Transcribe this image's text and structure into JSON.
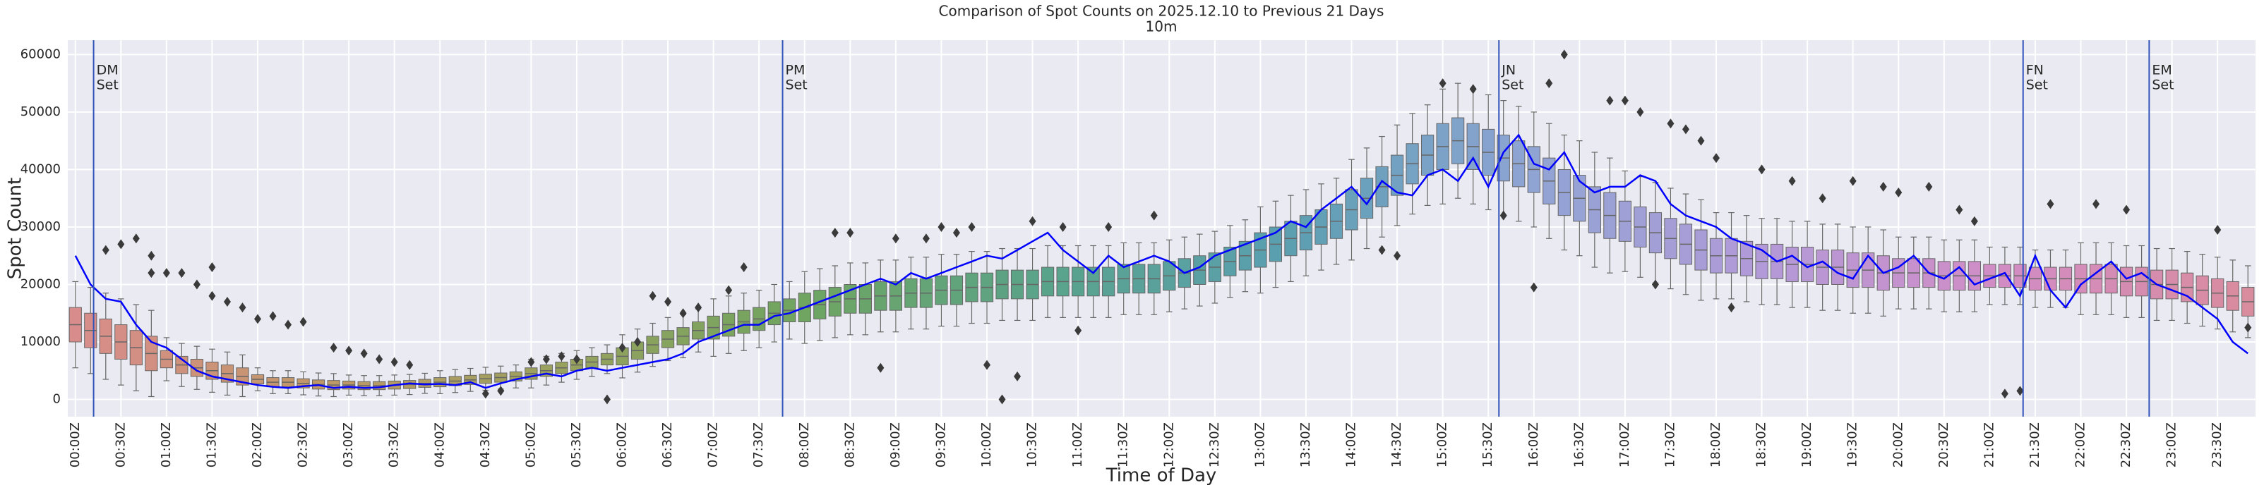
{
  "chart_data": {
    "type": "box",
    "title": "Comparison of Spot Counts on 2025.12.10 to Previous 21 Days",
    "subtitle": "10m",
    "xlabel": "Time of Day",
    "ylabel": "Spot Count",
    "categories": [
      "00:00Z",
      null,
      null,
      "00:30Z",
      null,
      null,
      "01:00Z",
      null,
      null,
      "01:30Z",
      null,
      null,
      "02:00Z",
      null,
      null,
      "02:30Z",
      null,
      null,
      "03:00Z",
      null,
      null,
      "03:30Z",
      null,
      null,
      "04:00Z",
      null,
      null,
      "04:30Z",
      null,
      null,
      "05:00Z",
      null,
      null,
      "05:30Z",
      null,
      null,
      "06:00Z",
      null,
      null,
      "06:30Z",
      null,
      null,
      "07:00Z",
      null,
      null,
      "07:30Z",
      null,
      null,
      "08:00Z",
      null,
      null,
      "08:30Z",
      null,
      null,
      "09:00Z",
      null,
      null,
      "09:30Z",
      null,
      null,
      "10:00Z",
      null,
      null,
      "10:30Z",
      null,
      null,
      "11:00Z",
      null,
      null,
      "11:30Z",
      null,
      null,
      "12:00Z",
      null,
      null,
      "12:30Z",
      null,
      null,
      "13:00Z",
      null,
      null,
      "13:30Z",
      null,
      null,
      "14:00Z",
      null,
      null,
      "14:30Z",
      null,
      null,
      "15:00Z",
      null,
      null,
      "15:30Z",
      null,
      null,
      "16:00Z",
      null,
      null,
      "16:30Z",
      null,
      null,
      "17:00Z",
      null,
      null,
      "17:30Z",
      null,
      null,
      "18:00Z",
      null,
      null,
      "18:30Z",
      null,
      null,
      "19:00Z",
      null,
      null,
      "19:30Z",
      null,
      null,
      "20:00Z",
      null,
      null,
      "20:30Z",
      null,
      null,
      "21:00Z",
      null,
      null,
      "21:30Z",
      null,
      null,
      "22:00Z",
      null,
      null,
      "22:30Z",
      null,
      null,
      "23:00Z",
      null,
      null,
      "23:30Z",
      null,
      null
    ],
    "median": [
      13000,
      12000,
      11000,
      10000,
      9000,
      8000,
      7000,
      6000,
      5500,
      5000,
      4500,
      4000,
      3500,
      3000,
      3000,
      2800,
      2600,
      2500,
      2500,
      2400,
      2400,
      2500,
      2600,
      2800,
      3000,
      3200,
      3400,
      3600,
      3800,
      4000,
      4500,
      5000,
      5500,
      6000,
      6500,
      7000,
      7500,
      8500,
      9500,
      10500,
      11000,
      12000,
      12500,
      13000,
      13500,
      14000,
      15000,
      15500,
      16000,
      16500,
      17000,
      17500,
      17500,
      18000,
      18000,
      18500,
      18500,
      19000,
      19000,
      19500,
      19500,
      20000,
      20000,
      20000,
      20500,
      20500,
      20500,
      20500,
      20500,
      21000,
      21000,
      21000,
      21500,
      22000,
      22500,
      23000,
      24000,
      25000,
      26000,
      27000,
      28000,
      29000,
      30000,
      31000,
      33000,
      35000,
      37000,
      39000,
      41000,
      42500,
      44000,
      45000,
      44000,
      43000,
      42000,
      41000,
      40000,
      38000,
      36000,
      35000,
      33000,
      32000,
      31000,
      30000,
      29000,
      28000,
      27000,
      26000,
      25000,
      25000,
      24500,
      24000,
      24000,
      23500,
      23500,
      23000,
      23000,
      22500,
      22500,
      22000,
      22000,
      22000,
      22000,
      21500,
      21500,
      21500,
      21500,
      21500,
      21500,
      21000,
      21000,
      21000,
      21000,
      21000,
      21000,
      20500,
      20500,
      20000,
      20000,
      19500,
      19000,
      18500,
      18000,
      17000
    ],
    "q1": [
      10000,
      9000,
      8000,
      7000,
      6000,
      5000,
      5500,
      4500,
      4000,
      3500,
      3000,
      2500,
      2700,
      2200,
      2200,
      2000,
      1800,
      1700,
      1800,
      1700,
      1700,
      1800,
      1900,
      2100,
      2200,
      2400,
      2600,
      2800,
      3000,
      3200,
      3500,
      4000,
      4500,
      5000,
      5500,
      6000,
      6000,
      7000,
      8000,
      9000,
      9500,
      10500,
      10500,
      11000,
      11500,
      12000,
      13000,
      13500,
      13500,
      14000,
      14500,
      15000,
      15000,
      15500,
      15500,
      16000,
      16000,
      16500,
      16500,
      17000,
      17000,
      17500,
      17500,
      17500,
      18000,
      18000,
      18000,
      18000,
      18000,
      18500,
      18500,
      18500,
      19000,
      19500,
      20000,
      20500,
      21500,
      22500,
      23000,
      24000,
      25000,
      26000,
      27000,
      28000,
      29500,
      31500,
      33500,
      35500,
      37500,
      39000,
      40000,
      41000,
      40000,
      39000,
      38000,
      37000,
      36000,
      34000,
      32000,
      31000,
      29000,
      28000,
      27500,
      26500,
      25500,
      24500,
      23500,
      22500,
      22000,
      22000,
      21500,
      21000,
      21000,
      20500,
      20500,
      20000,
      20000,
      19500,
      19500,
      19000,
      19500,
      19500,
      19500,
      19000,
      19000,
      19000,
      19500,
      19500,
      19500,
      19000,
      19000,
      19000,
      18500,
      18500,
      18500,
      18000,
      18000,
      17500,
      17500,
      17000,
      16500,
      16000,
      15500,
      14500
    ],
    "q3": [
      16000,
      15000,
      14000,
      13000,
      12000,
      11000,
      8500,
      7500,
      7000,
      6500,
      6000,
      5500,
      4300,
      3800,
      3800,
      3600,
      3400,
      3300,
      3200,
      3100,
      3100,
      3200,
      3300,
      3500,
      3800,
      4000,
      4200,
      4400,
      4600,
      4800,
      5500,
      6000,
      6500,
      7000,
      7500,
      8000,
      9000,
      10000,
      11000,
      12000,
      12500,
      13500,
      14500,
      15000,
      15500,
      16000,
      17000,
      17500,
      18500,
      19000,
      19500,
      20000,
      20000,
      20500,
      20500,
      21000,
      21000,
      21500,
      21500,
      22000,
      22000,
      22500,
      22500,
      22500,
      23000,
      23000,
      23000,
      23000,
      23000,
      23500,
      23500,
      23500,
      24000,
      24500,
      25000,
      25500,
      26500,
      27500,
      29000,
      30000,
      31000,
      32000,
      33000,
      34000,
      36500,
      38500,
      40500,
      42500,
      44500,
      46000,
      48000,
      49000,
      48000,
      47000,
      46000,
      45000,
      44000,
      42000,
      40000,
      39000,
      37000,
      36000,
      34500,
      33500,
      32500,
      31500,
      30500,
      29500,
      28000,
      28000,
      27500,
      27000,
      27000,
      26500,
      26500,
      26000,
      26000,
      25500,
      25500,
      25000,
      24500,
      24500,
      24500,
      24000,
      24000,
      24000,
      23500,
      23500,
      23500,
      23000,
      23000,
      23000,
      23500,
      23500,
      23500,
      23000,
      23000,
      22500,
      22500,
      22000,
      21500,
      21000,
      20500,
      19500
    ],
    "whislo": [
      5500,
      4500,
      3500,
      2500,
      1500,
      500,
      3250,
      2250,
      1750,
      1250,
      750,
      500,
      1500,
      1000,
      1000,
      800,
      600,
      500,
      750,
      650,
      650,
      750,
      850,
      1050,
      1000,
      1200,
      1400,
      1600,
      1800,
      2000,
      2000,
      2500,
      3000,
      3500,
      4000,
      4500,
      3750,
      4750,
      5750,
      6750,
      7250,
      8250,
      7500,
      8000,
      8500,
      9000,
      10000,
      10500,
      9750,
      10250,
      10750,
      11250,
      11250,
      11750,
      11750,
      12250,
      12250,
      12750,
      12750,
      13250,
      13250,
      13750,
      13750,
      13750,
      14250,
      14250,
      14250,
      14250,
      14250,
      14750,
      14750,
      14750,
      15250,
      15750,
      16250,
      16750,
      17750,
      18750,
      18500,
      19500,
      20500,
      21500,
      22500,
      23500,
      24250,
      26250,
      28250,
      30250,
      32250,
      33750,
      34000,
      35000,
      34000,
      33000,
      32000,
      31000,
      30000,
      28000,
      26000,
      25000,
      23000,
      22000,
      22250,
      21250,
      20250,
      19250,
      18250,
      17250,
      17500,
      17500,
      17000,
      16500,
      16500,
      16000,
      16000,
      15500,
      15500,
      15000,
      15000,
      14500,
      15750,
      15750,
      15750,
      15250,
      15250,
      15250,
      16500,
      16500,
      16500,
      16000,
      16000,
      16000,
      14750,
      14750,
      14750,
      14250,
      14250,
      13750,
      13750,
      13250,
      12750,
      12250,
      11750,
      10750
    ],
    "whishi": [
      20500,
      19500,
      18500,
      17500,
      16500,
      15500,
      10750,
      9750,
      9250,
      8750,
      8250,
      7750,
      5500,
      5000,
      5000,
      4800,
      4600,
      4500,
      4250,
      4150,
      4150,
      4250,
      4350,
      4550,
      5000,
      5200,
      5400,
      5600,
      5800,
      6000,
      7000,
      7500,
      8000,
      8500,
      9000,
      9500,
      11250,
      12250,
      13250,
      14250,
      14750,
      15750,
      17500,
      18000,
      18500,
      19000,
      20000,
      20500,
      22250,
      22750,
      23250,
      23750,
      23750,
      24250,
      24250,
      24750,
      24750,
      25250,
      25250,
      25750,
      25750,
      26250,
      26250,
      26250,
      26750,
      26750,
      26750,
      26750,
      26750,
      27250,
      27250,
      27250,
      27750,
      28250,
      28750,
      29250,
      30250,
      31250,
      33500,
      34500,
      35500,
      36500,
      37500,
      38500,
      41750,
      43750,
      45750,
      47750,
      49750,
      51250,
      54000,
      55000,
      54000,
      53000,
      52000,
      51000,
      50000,
      48000,
      46000,
      45000,
      43000,
      42000,
      39750,
      38750,
      37750,
      36750,
      35750,
      34750,
      32500,
      32500,
      32000,
      31500,
      31500,
      31000,
      31000,
      30500,
      30500,
      30000,
      30000,
      29500,
      28250,
      28250,
      28250,
      27750,
      27750,
      27750,
      26500,
      26500,
      26500,
      26000,
      26000,
      26000,
      27250,
      27250,
      27250,
      26750,
      26750,
      26250,
      26250,
      25750,
      25250,
      24750,
      24250,
      23250
    ],
    "palette": [
      "#d98c8c",
      "#c09868",
      "#99a15e",
      "#6fa560",
      "#5aa38a",
      "#5a9fb0",
      "#8ea4d4",
      "#b39ad8",
      "#d28cc4",
      "#d98c9e"
    ],
    "box_edge": "#666666",
    "line": {
      "color": "#0000ff",
      "values": [
        25000,
        20000,
        17500,
        17000,
        13000,
        10000,
        9000,
        7000,
        5000,
        4000,
        3500,
        3000,
        2500,
        2200,
        2000,
        2300,
        2500,
        2000,
        2200,
        2000,
        2100,
        2500,
        2800,
        2600,
        2700,
        2500,
        3000,
        2000,
        2800,
        3500,
        4000,
        4500,
        4000,
        5000,
        5500,
        5000,
        5500,
        6000,
        6500,
        7000,
        8000,
        10000,
        11000,
        12000,
        13000,
        13000,
        14500,
        15000,
        16000,
        17000,
        18000,
        19000,
        20000,
        21000,
        20000,
        22000,
        21000,
        22000,
        23000,
        24000,
        25000,
        24500,
        26000,
        27500,
        29000,
        26000,
        24000,
        22000,
        25000,
        23000,
        24000,
        25000,
        24000,
        22000,
        23000,
        25000,
        26000,
        27000,
        28000,
        29000,
        31000,
        30000,
        33000,
        35000,
        37000,
        34000,
        38000,
        36000,
        35500,
        39000,
        40000,
        38000,
        42000,
        37000,
        43000,
        46000,
        41000,
        40000,
        43000,
        38000,
        36000,
        37000,
        37000,
        39000,
        38000,
        34000,
        32000,
        31000,
        30000,
        28000,
        27000,
        26000,
        24000,
        25000,
        23000,
        24000,
        22000,
        21000,
        25000,
        22000,
        23000,
        25000,
        22000,
        21000,
        23000,
        20000,
        21000,
        22000,
        18000,
        25000,
        19000,
        16000,
        20000,
        22000,
        24000,
        21000,
        22000,
        20000,
        19000,
        18000,
        16000,
        14000,
        10000,
        8000
      ]
    },
    "outlier_color": "#3a3a3a",
    "outliers": [
      [
        2,
        26000
      ],
      [
        3,
        27000
      ],
      [
        4,
        28000
      ],
      [
        5,
        25000
      ],
      [
        5,
        22000
      ],
      [
        6,
        22000
      ],
      [
        7,
        22000
      ],
      [
        8,
        20000
      ],
      [
        9,
        23000
      ],
      [
        9,
        18000
      ],
      [
        10,
        17000
      ],
      [
        11,
        16000
      ],
      [
        12,
        14000
      ],
      [
        13,
        14500
      ],
      [
        14,
        13000
      ],
      [
        15,
        13500
      ],
      [
        17,
        9000
      ],
      [
        18,
        8500
      ],
      [
        19,
        8000
      ],
      [
        20,
        7000
      ],
      [
        21,
        6500
      ],
      [
        22,
        6000
      ],
      [
        27,
        1000
      ],
      [
        28,
        1500
      ],
      [
        30,
        6500
      ],
      [
        31,
        7000
      ],
      [
        32,
        7500
      ],
      [
        33,
        7000
      ],
      [
        35,
        0
      ],
      [
        36,
        9000
      ],
      [
        37,
        10000
      ],
      [
        38,
        18000
      ],
      [
        39,
        17000
      ],
      [
        40,
        15000
      ],
      [
        41,
        16000
      ],
      [
        43,
        19000
      ],
      [
        44,
        23000
      ],
      [
        50,
        29000
      ],
      [
        51,
        29000
      ],
      [
        53,
        5500
      ],
      [
        54,
        28000
      ],
      [
        56,
        28000
      ],
      [
        57,
        30000
      ],
      [
        58,
        29000
      ],
      [
        59,
        30000
      ],
      [
        60,
        6000
      ],
      [
        61,
        0
      ],
      [
        62,
        4000
      ],
      [
        63,
        31000
      ],
      [
        65,
        30000
      ],
      [
        66,
        12000
      ],
      [
        68,
        30000
      ],
      [
        71,
        32000
      ],
      [
        86,
        26000
      ],
      [
        87,
        25000
      ],
      [
        90,
        55000
      ],
      [
        92,
        54000
      ],
      [
        94,
        32000
      ],
      [
        96,
        19500
      ],
      [
        97,
        55000
      ],
      [
        98,
        60000
      ],
      [
        101,
        52000
      ],
      [
        102,
        52000
      ],
      [
        103,
        50000
      ],
      [
        104,
        20000
      ],
      [
        105,
        48000
      ],
      [
        106,
        47000
      ],
      [
        107,
        45000
      ],
      [
        108,
        42000
      ],
      [
        109,
        16000
      ],
      [
        111,
        40000
      ],
      [
        113,
        38000
      ],
      [
        115,
        35000
      ],
      [
        117,
        38000
      ],
      [
        119,
        37000
      ],
      [
        120,
        36000
      ],
      [
        122,
        37000
      ],
      [
        124,
        33000
      ],
      [
        125,
        31000
      ],
      [
        127,
        1000
      ],
      [
        128,
        1500
      ],
      [
        130,
        34000
      ],
      [
        133,
        34000
      ],
      [
        135,
        33000
      ],
      [
        141,
        29500
      ],
      [
        143,
        12500
      ]
    ],
    "vline_color": "#3355bb",
    "vlines": [
      {
        "x": 1.2,
        "label": [
          "DM",
          "Set"
        ]
      },
      {
        "x": 46.55,
        "label": [
          "PM",
          "Set"
        ]
      },
      {
        "x": 93.7,
        "label": [
          "JN",
          "Set"
        ]
      },
      {
        "x": 128.2,
        "label": [
          "FN",
          "Set"
        ]
      },
      {
        "x": 136.5,
        "label": [
          "EM",
          "Set"
        ]
      }
    ],
    "ylim": [
      -3000,
      62500
    ],
    "yticks": [
      0,
      10000,
      20000,
      30000,
      40000,
      50000,
      60000
    ],
    "grid": true
  }
}
